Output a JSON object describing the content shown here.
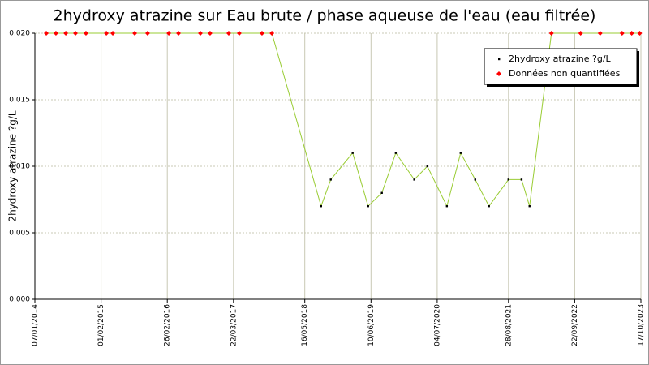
{
  "chart_data": {
    "type": "line",
    "title": "2hydroxy atrazine sur Eau brute / phase aqueuse de l'eau (eau filtrée)",
    "y_label": "2hydroxy atrazine ?g/L",
    "x": [
      "2014-03-15",
      "2014-05-11",
      "2014-07-08",
      "2014-09-03",
      "2014-11-04",
      "2015-03-04",
      "2015-04-11",
      "2015-08-18",
      "2015-11-02",
      "2016-03-06",
      "2016-05-02",
      "2016-09-08",
      "2016-11-04",
      "2017-02-22",
      "2017-04-25",
      "2017-09-06",
      "2017-11-03",
      "2018-08-20",
      "2018-10-16",
      "2019-02-22",
      "2019-05-24",
      "2019-08-13",
      "2019-11-03",
      "2020-02-20",
      "2020-05-07",
      "2020-08-30",
      "2020-11-19",
      "2021-02-13",
      "2021-05-05",
      "2021-08-28",
      "2021-11-13",
      "2021-12-30",
      "2022-05-08",
      "2022-10-27",
      "2023-02-19",
      "2023-06-28",
      "2023-08-24",
      "2023-10-10"
    ],
    "series": [
      {
        "name": "2hydroxy atrazine ?g/L",
        "color": "#99cc33",
        "marker_color": "#000000",
        "values": [
          0.02,
          0.02,
          0.02,
          0.02,
          0.02,
          0.02,
          0.02,
          0.02,
          0.02,
          0.02,
          0.02,
          0.02,
          0.02,
          0.02,
          0.02,
          0.02,
          0.02,
          0.007,
          0.009,
          0.011,
          0.007,
          0.008,
          0.011,
          0.009,
          0.01,
          0.007,
          0.011,
          0.009,
          0.007,
          0.009,
          0.009,
          0.007,
          0.02,
          0.02,
          0.02,
          0.02,
          0.02,
          0.02
        ]
      },
      {
        "name": "Données non quantifiées",
        "color": "#ff0000",
        "values": [
          0.02,
          0.02,
          0.02,
          0.02,
          0.02,
          0.02,
          0.02,
          0.02,
          0.02,
          0.02,
          0.02,
          0.02,
          0.02,
          0.02,
          0.02,
          0.02,
          0.02,
          null,
          null,
          null,
          null,
          null,
          null,
          null,
          null,
          null,
          null,
          null,
          null,
          null,
          null,
          null,
          0.02,
          0.02,
          0.02,
          0.02,
          0.02,
          0.02
        ]
      }
    ],
    "xlim": [
      "2014-01-07",
      "2023-10-17"
    ],
    "xticks": [
      {
        "value": "2014-01-07",
        "label": "07/01/2014"
      },
      {
        "value": "2015-02-01",
        "label": "01/02/2015"
      },
      {
        "value": "2016-02-26",
        "label": "26/02/2016"
      },
      {
        "value": "2017-03-22",
        "label": "22/03/2017"
      },
      {
        "value": "2018-05-16",
        "label": "16/05/2018"
      },
      {
        "value": "2019-06-10",
        "label": "10/06/2019"
      },
      {
        "value": "2020-07-04",
        "label": "04/07/2020"
      },
      {
        "value": "2021-08-28",
        "label": "28/08/2021"
      },
      {
        "value": "2022-09-22",
        "label": "22/09/2022"
      },
      {
        "value": "2023-10-17",
        "label": "17/10/2023"
      }
    ],
    "ylim": [
      0,
      0.02
    ],
    "yticks": [
      {
        "value": 0,
        "label": "0.000"
      },
      {
        "value": 0.005,
        "label": "0.005"
      },
      {
        "value": 0.01,
        "label": "0.010"
      },
      {
        "value": 0.015,
        "label": "0.015"
      },
      {
        "value": 0.02,
        "label": "0.020"
      }
    ],
    "grid": true,
    "legend": "upper right"
  }
}
